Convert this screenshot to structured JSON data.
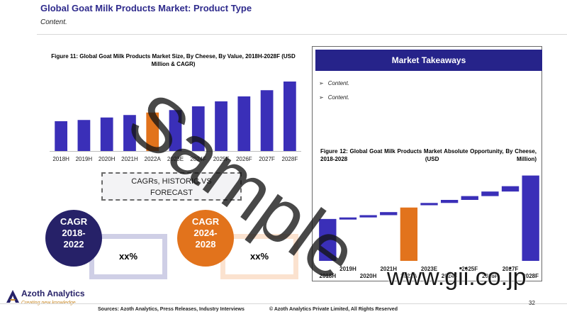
{
  "header": {
    "title": "Global Goat Milk Products Market: Product Type",
    "subtitle": "Content."
  },
  "left_chart": {
    "caption": "Figure 11: Global Goat Milk Products Market Size, By Cheese, By Value, 2018H-2028F (USD Million & CAGR)"
  },
  "takeaways": {
    "title": "Market Takeaways",
    "bullets": [
      "Content.",
      "Content."
    ]
  },
  "right_chart": {
    "caption": "Figure 12: Global Goat Milk Products Market Absolute Opportunity, By Cheese, 2018-2028 (USD Million)"
  },
  "cagr_section": {
    "heading_line1": "CAGRs, HISTORIC VS",
    "heading_line2": "FORECAST",
    "historic": {
      "label": "CAGR",
      "range_start": "2018-",
      "range_end": "2022",
      "value": "xx%"
    },
    "forecast": {
      "label": "CAGR",
      "range_start": "2024-",
      "range_end": "2028",
      "value": "xx%"
    }
  },
  "branding": {
    "company": "Azoth Analytics",
    "tagline": "Creating new knowledge",
    "watermark": "Sample",
    "site": "www.gii.co.jp"
  },
  "footer": {
    "sources": "Sources: Azoth Analytics, Press Releases, Industry Interviews",
    "copyright": "© Azoth Analytics Private Limited, All Rights Reserved",
    "page": "32"
  },
  "colors": {
    "primary": "#3a2fb8",
    "highlight": "#e2731c",
    "header_bg": "#26238a"
  },
  "chart_data": [
    {
      "type": "bar",
      "categories": [
        "2018H",
        "2019H",
        "2020H",
        "2021H",
        "2022A",
        "2023E",
        "2024F",
        "2025F",
        "2026F",
        "2027F",
        "2028F"
      ],
      "values": [
        48,
        50,
        54,
        58,
        62,
        66,
        72,
        80,
        88,
        98,
        112
      ],
      "highlight_index": 4,
      "title": "Figure 11: Global Goat Milk Products Market Size, By Cheese, By Value, 2018H-2028F (USD Million & CAGR)",
      "ylim": [
        0,
        120
      ]
    },
    {
      "type": "bar",
      "subtype": "waterfall",
      "categories": [
        "2018H",
        "2019H",
        "2020H",
        "2021H",
        "2022A",
        "2023E",
        "2024F",
        "2025F",
        "2026F",
        "2027F",
        "2028F"
      ],
      "bases": [
        0,
        55,
        57,
        60,
        0,
        73,
        76,
        80,
        85,
        91,
        0
      ],
      "values": [
        55,
        2,
        3,
        4,
        70,
        3,
        4,
        5,
        6,
        7,
        112
      ],
      "highlight_index": 4,
      "total_indices": [
        0,
        10
      ],
      "title": "Figure 12: Global Goat Milk Products Market Absolute Opportunity, By Cheese, 2018-2028 (USD Million)",
      "ylim": [
        0,
        120
      ]
    }
  ]
}
